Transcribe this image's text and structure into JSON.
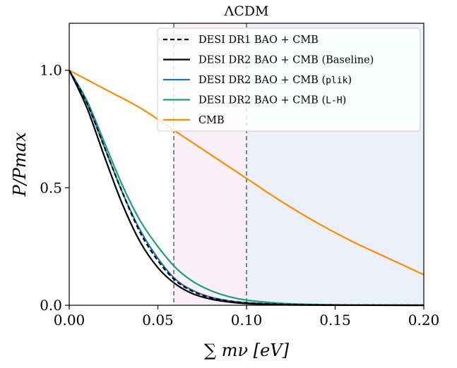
{
  "chart_data": {
    "type": "line",
    "title": "ΛCDM",
    "xlabel": "∑ mν [eV]",
    "ylabel": "P/Pmax",
    "xlim": [
      0.0,
      0.2
    ],
    "ylim": [
      0.0,
      1.2
    ],
    "xticks": [
      "0.00",
      "0.05",
      "0.10",
      "0.15",
      "0.20"
    ],
    "yticks": [
      "0.0",
      "0.5",
      "1.0"
    ],
    "grid": false,
    "legend_position": "top-right",
    "vlines": [
      0.059,
      0.1
    ],
    "shaded_regions": [
      {
        "from": 0.059,
        "to": 0.1,
        "color": "#fbeff8"
      },
      {
        "from": 0.1,
        "to": 0.2,
        "color": "#ebf0f9"
      }
    ],
    "series": [
      {
        "name_prefix": "DESI DR1 BAO + CMB",
        "name_code": "",
        "name_suffix": "",
        "color": "#000000",
        "dash": "dashed",
        "x": [
          0.0,
          0.01,
          0.02,
          0.03,
          0.04,
          0.05,
          0.06,
          0.07,
          0.08,
          0.09,
          0.1,
          0.12,
          0.14,
          0.16,
          0.2
        ],
        "y": [
          1.0,
          0.86,
          0.67,
          0.48,
          0.31,
          0.19,
          0.105,
          0.058,
          0.032,
          0.018,
          0.01,
          0.004,
          0.0015,
          0.0005,
          0.0
        ]
      },
      {
        "name_prefix": "DESI DR2 BAO + CMB (Baseline)",
        "name_code": "",
        "name_suffix": "",
        "color": "#000000",
        "dash": "solid",
        "x": [
          0.0,
          0.01,
          0.02,
          0.03,
          0.04,
          0.05,
          0.06,
          0.07,
          0.08,
          0.09,
          0.1,
          0.12,
          0.14,
          0.16,
          0.2
        ],
        "y": [
          1.0,
          0.84,
          0.63,
          0.43,
          0.27,
          0.16,
          0.09,
          0.048,
          0.026,
          0.014,
          0.007,
          0.002,
          0.0006,
          0.0002,
          0.0
        ]
      },
      {
        "name_prefix": "DESI DR2 BAO + CMB (",
        "name_code": "plik",
        "name_suffix": ")",
        "color": "#1f77b4",
        "dash": "solid",
        "x": [
          0.0,
          0.01,
          0.02,
          0.03,
          0.04,
          0.05,
          0.06,
          0.07,
          0.08,
          0.09,
          0.1,
          0.12,
          0.14,
          0.16,
          0.2
        ],
        "y": [
          1.0,
          0.86,
          0.67,
          0.48,
          0.32,
          0.2,
          0.11,
          0.062,
          0.034,
          0.019,
          0.011,
          0.004,
          0.0015,
          0.0005,
          0.0
        ]
      },
      {
        "name_prefix": "DESI DR2 BAO + CMB (",
        "name_code": "L-H",
        "name_suffix": ")",
        "color": "#17a17f",
        "dash": "solid",
        "x": [
          0.0,
          0.01,
          0.02,
          0.03,
          0.04,
          0.05,
          0.06,
          0.07,
          0.08,
          0.09,
          0.1,
          0.12,
          0.14,
          0.16,
          0.2
        ],
        "y": [
          1.0,
          0.87,
          0.69,
          0.51,
          0.36,
          0.25,
          0.16,
          0.1,
          0.062,
          0.037,
          0.022,
          0.008,
          0.003,
          0.001,
          0.0
        ]
      },
      {
        "name_prefix": "CMB",
        "name_code": "",
        "name_suffix": "",
        "color": "#ff8c00",
        "dash": "solid",
        "x": [
          0.0,
          0.02,
          0.04,
          0.06,
          0.08,
          0.1,
          0.12,
          0.14,
          0.16,
          0.18,
          0.2
        ],
        "y": [
          1.0,
          0.92,
          0.84,
          0.74,
          0.64,
          0.54,
          0.44,
          0.35,
          0.27,
          0.2,
          0.13
        ]
      }
    ]
  }
}
